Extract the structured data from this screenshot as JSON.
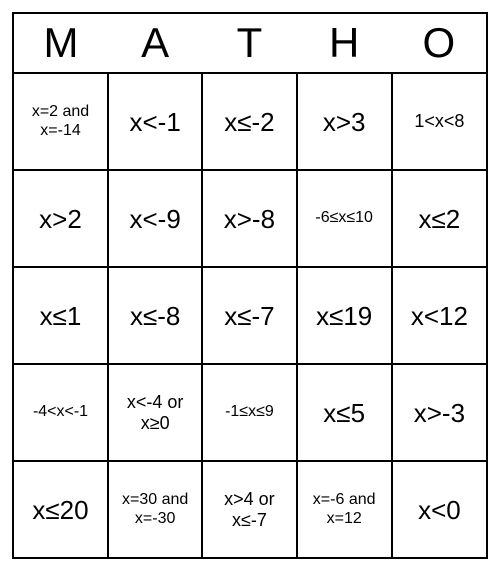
{
  "title_letters": [
    "M",
    "A",
    "T",
    "H",
    "O"
  ],
  "grid": {
    "columns": 5,
    "rows": 5,
    "cells": [
      [
        {
          "text": "x=2 and x=-14",
          "size": "small"
        },
        {
          "text": "x<-1",
          "size": "large"
        },
        {
          "text": "x≤-2",
          "size": "large"
        },
        {
          "text": "x>3",
          "size": "large"
        },
        {
          "text": "1<x<8",
          "size": "medium"
        }
      ],
      [
        {
          "text": "x>2",
          "size": "large"
        },
        {
          "text": "x<-9",
          "size": "large"
        },
        {
          "text": "x>-8",
          "size": "large"
        },
        {
          "text": "-6≤x≤10",
          "size": "small"
        },
        {
          "text": "x≤2",
          "size": "large"
        }
      ],
      [
        {
          "text": "x≤1",
          "size": "large"
        },
        {
          "text": "x≤-8",
          "size": "large"
        },
        {
          "text": "x≤-7",
          "size": "large"
        },
        {
          "text": "x≤19",
          "size": "large"
        },
        {
          "text": "x<12",
          "size": "large"
        }
      ],
      [
        {
          "text": "-4<x<-1",
          "size": "small"
        },
        {
          "text": "x<-4 or x≥0",
          "size": "medium"
        },
        {
          "text": "-1≤x≤9",
          "size": "small"
        },
        {
          "text": "x≤5",
          "size": "large"
        },
        {
          "text": "x>-3",
          "size": "large"
        }
      ],
      [
        {
          "text": "x≤20",
          "size": "large"
        },
        {
          "text": "x=30 and x=-30",
          "size": "small"
        },
        {
          "text": "x>4 or x≤-7",
          "size": "medium"
        },
        {
          "text": "x=-6 and x=12",
          "size": "small"
        },
        {
          "text": "x<0",
          "size": "large"
        }
      ]
    ],
    "border_color": "#000000",
    "background_color": "#ffffff",
    "header_fontsize": 42,
    "large_fontsize": 26,
    "medium_fontsize": 18,
    "small_fontsize": 16
  }
}
